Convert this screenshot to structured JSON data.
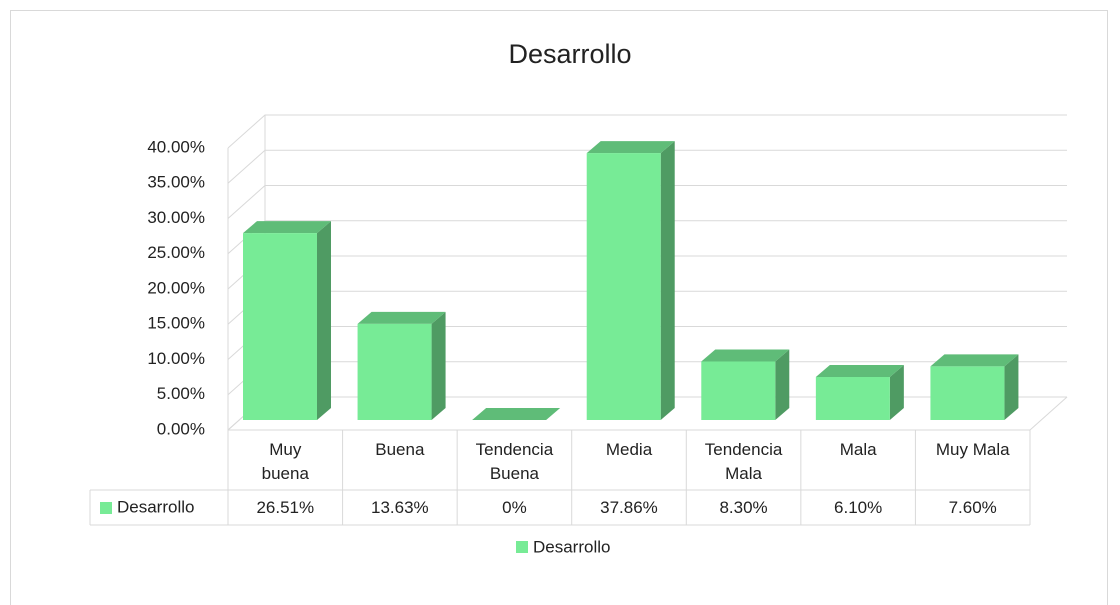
{
  "chart_data": {
    "type": "bar3d",
    "title": "Desarrollo",
    "categories": [
      "Muy buena",
      "Buena",
      "Tendencia Buena",
      "Media",
      "Tendencia Mala",
      "Mala",
      "Muy Mala"
    ],
    "series": [
      {
        "name": "Desarrollo",
        "color": "#77eb96",
        "values": [
          26.51,
          13.63,
          0,
          37.86,
          8.3,
          6.1,
          7.6
        ],
        "value_labels": [
          "26.51%",
          "13.63%",
          "0%",
          "37.86%",
          "8.30%",
          "6.10%",
          "7.60%"
        ]
      }
    ],
    "ylim": [
      0,
      40
    ],
    "yticks": [
      {
        "value": 0,
        "label": "0.00%"
      },
      {
        "value": 5,
        "label": "5.00%"
      },
      {
        "value": 10,
        "label": "10.00%"
      },
      {
        "value": 15,
        "label": "15.00%"
      },
      {
        "value": 20,
        "label": "20.00%"
      },
      {
        "value": 25,
        "label": "25.00%"
      },
      {
        "value": 30,
        "label": "30.00%"
      },
      {
        "value": 35,
        "label": "35.00%"
      },
      {
        "value": 40,
        "label": "40.00%"
      }
    ],
    "grid": true,
    "legend": "bottom"
  }
}
